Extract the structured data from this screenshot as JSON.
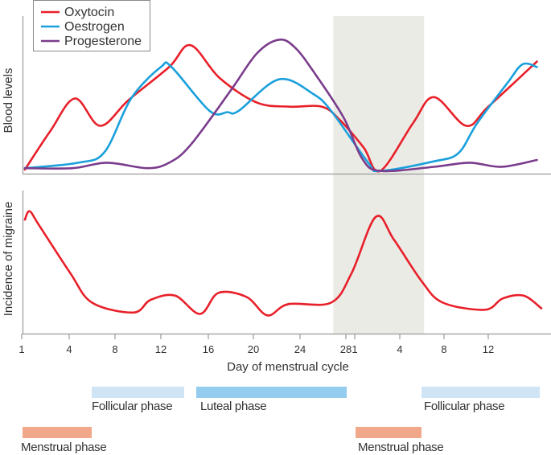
{
  "chart_data": [
    {
      "type": "line",
      "panel": "top",
      "ylabel": "Blood levels",
      "xlabel": "",
      "y_units": "relative (no ticks shown)",
      "ylim": [
        0,
        100
      ],
      "legend": {
        "placement": "top-left",
        "entries": [
          "Oxytocin",
          "Oestrogen",
          "Progesterone"
        ]
      },
      "shaded_region": {
        "start": {
          "cycle": 1,
          "day": 26.9
        },
        "end": {
          "cycle": 2,
          "day": 6.2
        },
        "color": "#ebebe6"
      },
      "series": [
        {
          "name": "Oxytocin",
          "color": "#e8202a",
          "cycle1": [
            [
              1.2,
              3
            ],
            [
              2.8,
              31
            ],
            [
              4.5,
              55
            ],
            [
              6.7,
              35
            ],
            [
              9.2,
              54
            ],
            [
              12.7,
              78
            ],
            [
              14.5,
              94
            ],
            [
              17.0,
              70
            ],
            [
              20.3,
              52
            ],
            [
              23.1,
              49
            ],
            [
              25.9,
              49
            ],
            [
              27.5,
              39
            ]
          ],
          "cycle2": [
            [
              1.6,
              19
            ],
            [
              2.7,
              2
            ],
            [
              5.2,
              37
            ],
            [
              7.1,
              56
            ],
            [
              10.0,
              35
            ],
            [
              12.0,
              49
            ],
            [
              16.4,
              82
            ]
          ]
        },
        {
          "name": "Oestrogen",
          "color": "#1aa0dc",
          "cycle1": [
            [
              1.2,
              4
            ],
            [
              4.8,
              8
            ],
            [
              7.1,
              16
            ],
            [
              9.4,
              55
            ],
            [
              12.0,
              78
            ],
            [
              12.9,
              78
            ],
            [
              16.1,
              46
            ],
            [
              17.7,
              45
            ],
            [
              18.7,
              46
            ],
            [
              22.2,
              69
            ],
            [
              25.2,
              58
            ],
            [
              26.8,
              45
            ]
          ],
          "cycle2": [
            [
              1.9,
              8
            ],
            [
              2.7,
              2
            ],
            [
              7.1,
              9
            ],
            [
              9.3,
              15
            ],
            [
              11.0,
              37
            ],
            [
              13.7,
              66
            ],
            [
              15.1,
              80
            ],
            [
              16.4,
              78
            ]
          ]
        },
        {
          "name": "Progesterone",
          "color": "#7a3c8c",
          "cycle1": [
            [
              1.2,
              4
            ],
            [
              4.3,
              4
            ],
            [
              7.3,
              8
            ],
            [
              10.8,
              4
            ],
            [
              12.7,
              8
            ],
            [
              14.5,
              21
            ],
            [
              18.0,
              61
            ],
            [
              20.3,
              88
            ],
            [
              22.2,
              98
            ],
            [
              23.6,
              92
            ],
            [
              25.4,
              72
            ],
            [
              27.8,
              41
            ]
          ],
          "cycle2": [
            [
              1.5,
              11
            ],
            [
              2.7,
              2
            ],
            [
              7.1,
              5
            ],
            [
              10.3,
              8
            ],
            [
              13.2,
              5
            ],
            [
              16.4,
              10
            ]
          ]
        }
      ]
    },
    {
      "type": "line",
      "panel": "bottom",
      "ylabel": "Incidence of migraine",
      "xlabel": "Day of menstrual cycle",
      "ylim": [
        0,
        100
      ],
      "x_ticks": [
        {
          "cycle": 1,
          "day": 1,
          "label": "1"
        },
        {
          "cycle": 1,
          "day": 4,
          "label": "4"
        },
        {
          "cycle": 1,
          "day": 8,
          "label": "8"
        },
        {
          "cycle": 1,
          "day": 12,
          "label": "12"
        },
        {
          "cycle": 1,
          "day": 16,
          "label": "16"
        },
        {
          "cycle": 1,
          "day": 20,
          "label": "20"
        },
        {
          "cycle": 1,
          "day": 24,
          "label": "24"
        },
        {
          "cycle": 1,
          "day": 28,
          "label": "28"
        },
        {
          "cycle": 2,
          "day": 1,
          "label": "1"
        },
        {
          "cycle": 2,
          "day": 4,
          "label": "4"
        },
        {
          "cycle": 2,
          "day": 8,
          "label": "8"
        },
        {
          "cycle": 2,
          "day": 12,
          "label": "12"
        }
      ],
      "series": [
        {
          "color": "#e8202a",
          "cycle1": [
            [
              1.2,
              81
            ],
            [
              1.5,
              87
            ],
            [
              2.1,
              77
            ],
            [
              4.1,
              43
            ],
            [
              6.0,
              22
            ],
            [
              9.6,
              15
            ],
            [
              11.1,
              24
            ],
            [
              13.2,
              27
            ],
            [
              15.3,
              14
            ],
            [
              16.9,
              29
            ],
            [
              19.4,
              26
            ],
            [
              21.2,
              13
            ],
            [
              23.0,
              21
            ],
            [
              26.7,
              22
            ],
            [
              28.5,
              43
            ]
          ],
          "cycle2": [
            [
              2.4,
              83
            ],
            [
              3.6,
              67
            ],
            [
              6.0,
              37
            ],
            [
              7.9,
              22
            ],
            [
              11.7,
              17
            ],
            [
              13.3,
              25
            ],
            [
              15.2,
              27
            ],
            [
              16.8,
              18
            ]
          ]
        }
      ]
    }
  ],
  "phases": [
    {
      "label": "Follicular phase",
      "color": "#cfe5f6"
    },
    {
      "label": "Luteal phase",
      "color": "#93ccef"
    },
    {
      "label": "Follicular phase",
      "color": "#cfe5f6"
    },
    {
      "label": "Menstrual phase",
      "color": "#f1a78a"
    },
    {
      "label": "Menstrual phase",
      "color": "#f1a78a"
    }
  ]
}
